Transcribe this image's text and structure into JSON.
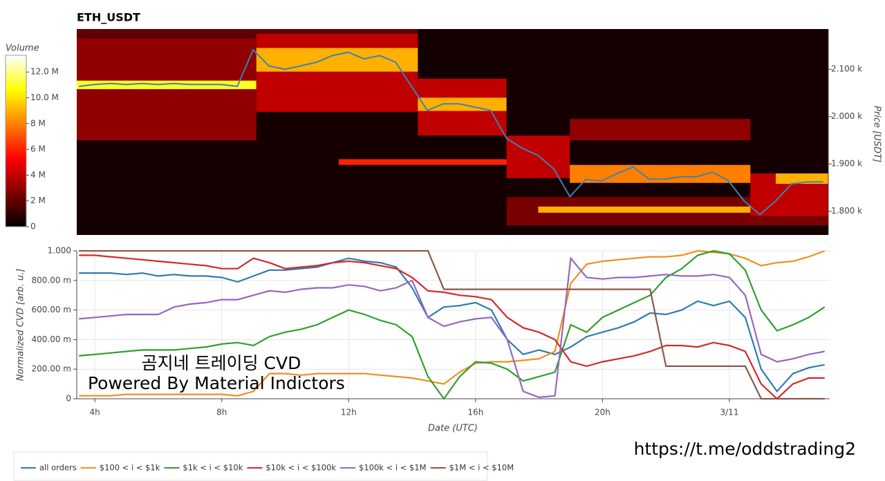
{
  "chart_data": [
    {
      "type": "heatmap",
      "title": "ETH_USDT",
      "y_label": "Price [USDT]",
      "colorbar_label": "Volume",
      "xlim": [
        3.43,
        27.16
      ],
      "ylim": [
        1750,
        2185
      ],
      "yticks": [
        {
          "value": 1800,
          "label": "1.800 k"
        },
        {
          "value": 1900,
          "label": "1.900 k"
        },
        {
          "value": 2000,
          "label": "2.000 k"
        },
        {
          "value": 2100,
          "label": "2.100 k"
        }
      ],
      "zlim": [
        0,
        13.3
      ],
      "zticks": [
        0,
        {
          "value": 2,
          "label": "2 M"
        },
        {
          "value": 4,
          "label": "4 M"
        },
        {
          "value": 6,
          "label": "6 M"
        },
        {
          "value": 8,
          "label": "8 M"
        },
        {
          "value": 10,
          "label": "10.0 M"
        },
        {
          "value": 12,
          "label": "12.0 M"
        }
      ],
      "cells": [
        {
          "x": [
            3.43,
            14.2
          ],
          "y": [
            2160,
            2185
          ],
          "value": 2
        },
        {
          "x": [
            3.43,
            9.1
          ],
          "y": [
            1950,
            2165
          ],
          "value": 3
        },
        {
          "x": [
            3.43,
            9.1
          ],
          "y": [
            2058,
            2076
          ],
          "value": 11
        },
        {
          "x": [
            9.1,
            14.2
          ],
          "y": [
            2010,
            2175
          ],
          "value": 4
        },
        {
          "x": [
            9.1,
            14.2
          ],
          "y": [
            2095,
            2145
          ],
          "value": 9
        },
        {
          "x": [
            14.2,
            17
          ],
          "y": [
            1960,
            2080
          ],
          "value": 4
        },
        {
          "x": [
            14.2,
            17
          ],
          "y": [
            2012,
            2040
          ],
          "value": 9
        },
        {
          "x": [
            11.7,
            18.5
          ],
          "y": [
            1898,
            1910
          ],
          "value": 6
        },
        {
          "x": [
            17,
            19
          ],
          "y": [
            1870,
            1960
          ],
          "value": 4
        },
        {
          "x": [
            17,
            27.16
          ],
          "y": [
            1770,
            1830
          ],
          "value": 2.5
        },
        {
          "x": [
            18,
            25
          ],
          "y": [
            1797,
            1810
          ],
          "value": 9
        },
        {
          "x": [
            19,
            24.7
          ],
          "y": [
            1860,
            1898
          ],
          "value": 8
        },
        {
          "x": [
            19,
            24.7
          ],
          "y": [
            1950,
            1995
          ],
          "value": 3
        },
        {
          "x": [
            24.7,
            27.16
          ],
          "y": [
            1790,
            1880
          ],
          "value": 4
        },
        {
          "x": [
            25.5,
            27.16
          ],
          "y": [
            1858,
            1880
          ],
          "value": 9
        }
      ],
      "x": [
        3.5,
        4,
        4.5,
        5,
        5.5,
        6,
        6.5,
        7,
        7.5,
        8,
        8.5,
        9,
        9.5,
        10,
        10.5,
        11,
        11.5,
        12,
        12.5,
        13,
        13.5,
        14,
        14.5,
        15,
        15.5,
        16,
        16.5,
        17,
        17.5,
        18,
        18.5,
        19,
        19.5,
        20,
        20.5,
        21,
        21.5,
        22,
        22.5,
        23,
        23.5,
        24,
        24.5,
        25,
        25.5,
        26,
        26.5,
        27
      ],
      "series": [
        {
          "color": "#3b82b6",
          "values": [
            2064,
            2068,
            2070,
            2068,
            2070,
            2068,
            2070,
            2068,
            2068,
            2068,
            2064,
            2141,
            2107,
            2100,
            2107,
            2115,
            2129,
            2136,
            2122,
            2129,
            2115,
            2064,
            2013,
            2027,
            2027,
            2020,
            2013,
            1954,
            1933,
            1918,
            1889,
            1831,
            1867,
            1864,
            1880,
            1894,
            1868,
            1868,
            1873,
            1873,
            1883,
            1865,
            1822,
            1793,
            1822,
            1858,
            1862,
            1862
          ]
        }
      ]
    },
    {
      "type": "line",
      "x_label": "Date (UTC)",
      "y_label": "Normalized CVD [arb. u.]",
      "grid": true,
      "legend": "bottom-left",
      "xlim": [
        3.43,
        27.16
      ],
      "xticks": [
        {
          "value": 4,
          "label": "4h"
        },
        {
          "value": 8,
          "label": "8h"
        },
        {
          "value": 12,
          "label": "12h"
        },
        {
          "value": 16,
          "label": "16h"
        },
        {
          "value": 20,
          "label": "20h"
        },
        {
          "value": 24,
          "label": "3/11"
        }
      ],
      "ylim": [
        0,
        1
      ],
      "yticks": [
        0,
        {
          "value": 0.2,
          "label": "200.00 m"
        },
        {
          "value": 0.4,
          "label": "400.00 m"
        },
        {
          "value": 0.6,
          "label": "600.00 m"
        },
        {
          "value": 0.8,
          "label": "800.00 m"
        },
        {
          "value": 1,
          "label": "1.000"
        }
      ],
      "annotations": [
        "곰지네 트레이딩 CVD",
        "Powered By Material Indictors",
        "https://t.me/oddstrading2"
      ],
      "x": [
        3.5,
        4,
        4.5,
        5,
        5.5,
        6,
        6.5,
        7,
        7.5,
        8,
        8.5,
        9,
        9.5,
        10,
        10.5,
        11,
        11.5,
        12,
        12.5,
        13,
        13.5,
        14,
        14.5,
        15,
        15.5,
        16,
        16.5,
        17,
        17.5,
        18,
        18.5,
        19,
        19.5,
        20,
        20.5,
        21,
        21.5,
        22,
        22.5,
        23,
        23.5,
        24,
        24.5,
        25,
        25.5,
        26,
        26.5,
        27
      ],
      "series": [
        {
          "name": "all orders",
          "color": "#2e7bb0",
          "values": [
            0.85,
            0.85,
            0.85,
            0.84,
            0.85,
            0.83,
            0.84,
            0.83,
            0.83,
            0.82,
            0.79,
            0.83,
            0.87,
            0.87,
            0.88,
            0.89,
            0.92,
            0.95,
            0.93,
            0.92,
            0.89,
            0.75,
            0.55,
            0.62,
            0.63,
            0.65,
            0.6,
            0.4,
            0.3,
            0.33,
            0.3,
            0.35,
            0.42,
            0.45,
            0.48,
            0.52,
            0.58,
            0.57,
            0.6,
            0.66,
            0.63,
            0.66,
            0.55,
            0.2,
            0.05,
            0.17,
            0.21,
            0.23
          ]
        },
        {
          "name": "$100 < i < $1k",
          "color": "#f28e1c",
          "values": [
            0.02,
            0.02,
            0.02,
            0.03,
            0.03,
            0.03,
            0.03,
            0.03,
            0.03,
            0.03,
            0.02,
            0.05,
            0.17,
            0.17,
            0.16,
            0.17,
            0.17,
            0.17,
            0.17,
            0.16,
            0.15,
            0.14,
            0.12,
            0.1,
            0.18,
            0.24,
            0.25,
            0.25,
            0.26,
            0.27,
            0.32,
            0.78,
            0.91,
            0.93,
            0.94,
            0.95,
            0.96,
            0.96,
            0.97,
            1.0,
            0.99,
            0.98,
            0.95,
            0.9,
            0.92,
            0.93,
            0.96,
            1.0
          ]
        },
        {
          "name": "$1k < i < $10k",
          "color": "#2ca02c",
          "values": [
            0.29,
            0.3,
            0.31,
            0.32,
            0.33,
            0.33,
            0.33,
            0.34,
            0.35,
            0.37,
            0.38,
            0.36,
            0.42,
            0.45,
            0.47,
            0.5,
            0.55,
            0.6,
            0.57,
            0.53,
            0.5,
            0.42,
            0.15,
            0.0,
            0.15,
            0.25,
            0.24,
            0.2,
            0.12,
            0.15,
            0.18,
            0.5,
            0.45,
            0.55,
            0.6,
            0.65,
            0.7,
            0.82,
            0.88,
            0.97,
            1.0,
            0.98,
            0.87,
            0.6,
            0.46,
            0.5,
            0.55,
            0.62
          ]
        },
        {
          "name": "$10k < i < $100k",
          "color": "#d62728",
          "values": [
            0.97,
            0.97,
            0.96,
            0.95,
            0.94,
            0.93,
            0.92,
            0.91,
            0.9,
            0.88,
            0.88,
            0.95,
            0.92,
            0.88,
            0.89,
            0.9,
            0.92,
            0.93,
            0.92,
            0.9,
            0.88,
            0.82,
            0.73,
            0.72,
            0.7,
            0.69,
            0.67,
            0.55,
            0.48,
            0.45,
            0.4,
            0.25,
            0.22,
            0.25,
            0.27,
            0.29,
            0.32,
            0.36,
            0.36,
            0.35,
            0.38,
            0.36,
            0.32,
            0.1,
            0.0,
            0.1,
            0.14,
            0.14
          ]
        },
        {
          "name": "$100k < i < $1M",
          "color": "#9467bd",
          "values": [
            0.54,
            0.55,
            0.56,
            0.57,
            0.57,
            0.57,
            0.62,
            0.64,
            0.65,
            0.67,
            0.67,
            0.7,
            0.73,
            0.72,
            0.74,
            0.75,
            0.75,
            0.77,
            0.76,
            0.73,
            0.75,
            0.8,
            0.55,
            0.49,
            0.52,
            0.54,
            0.55,
            0.4,
            0.05,
            0.01,
            0.02,
            0.95,
            0.82,
            0.81,
            0.82,
            0.82,
            0.83,
            0.84,
            0.83,
            0.83,
            0.84,
            0.82,
            0.7,
            0.3,
            0.25,
            0.27,
            0.3,
            0.32
          ]
        },
        {
          "name": "$1M < i < $10M",
          "color": "#8c564b",
          "values": [
            1.0,
            1.0,
            1.0,
            1.0,
            1.0,
            1.0,
            1.0,
            1.0,
            1.0,
            1.0,
            1.0,
            1.0,
            1.0,
            1.0,
            1.0,
            1.0,
            1.0,
            1.0,
            1.0,
            1.0,
            1.0,
            1.0,
            1.0,
            0.74,
            0.74,
            0.74,
            0.74,
            0.74,
            0.74,
            0.74,
            0.74,
            0.74,
            0.74,
            0.74,
            0.74,
            0.74,
            0.74,
            0.22,
            0.22,
            0.22,
            0.22,
            0.22,
            0.22,
            0,
            0,
            0,
            0,
            0
          ]
        }
      ]
    }
  ]
}
